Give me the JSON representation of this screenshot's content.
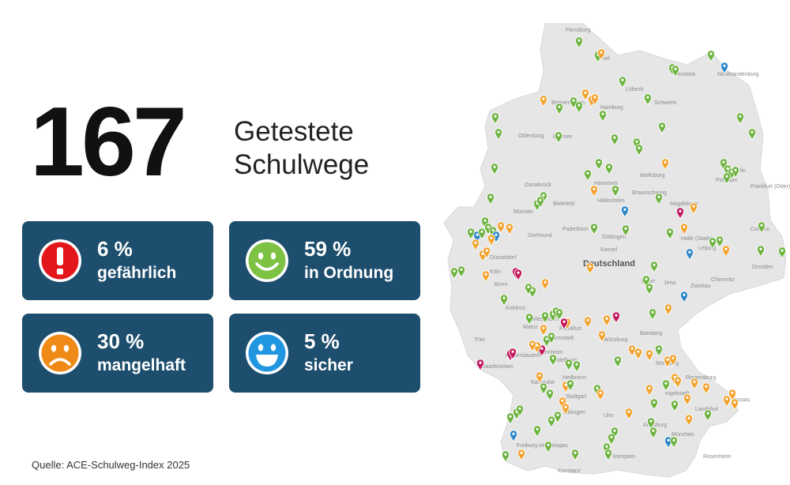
{
  "headline": {
    "number": "167",
    "line1": "Getestete",
    "line2": "Schulwege"
  },
  "categories": [
    {
      "percent": "6 %",
      "label": "gefährlich",
      "icon": "exclamation-icon",
      "color": "#e3161b"
    },
    {
      "percent": "59 %",
      "label": "in Ordnung",
      "icon": "happy-face-icon",
      "color": "#7dc242"
    },
    {
      "percent": "30 %",
      "label": "mangelhaft",
      "icon": "sad-face-icon",
      "color": "#f08a16"
    },
    {
      "percent": "5 %",
      "label": "sicher",
      "icon": "laughing-face-icon",
      "color": "#2196e0"
    }
  ],
  "map": {
    "country_label": "Deutschland",
    "city_labels": [
      "Flensburg",
      "Kiel",
      "Lübeck",
      "Rostock",
      "Hamburg",
      "Bremerhaven",
      "Bremen",
      "Oldenburg",
      "Schwerin",
      "Neubrandenburg",
      "Hannover",
      "Wolfsburg",
      "Braunschweig",
      "Magdeburg",
      "Potsdam",
      "Berlin",
      "Frankfurt (Oder)",
      "Osnabrück",
      "Bielefeld",
      "Münster",
      "Paderborn",
      "Hildesheim",
      "Göttingen",
      "Dortmund",
      "Düsseldorf",
      "Köln",
      "Bonn",
      "Kassel",
      "Halle (Saale)",
      "Leipzig",
      "Dresden",
      "Cottbus",
      "Erfurt",
      "Jena",
      "Zwickau",
      "Chemnitz",
      "Koblenz",
      "Wiesbaden",
      "Mainz",
      "Frankfurt",
      "Darmstadt",
      "Würzburg",
      "Bamberg",
      "Nürnberg",
      "Mannheim",
      "Heidelberg",
      "Heilbronn",
      "Karlsruhe",
      "Stuttgart",
      "Tübingen",
      "Ulm",
      "Augsburg",
      "Ingolstadt",
      "Regensburg",
      "Passau",
      "Landshut",
      "München",
      "Freiburg im Breisgau",
      "Konstanz",
      "Kempten",
      "Rosenheim",
      "Saarbrücken",
      "Trier",
      "Kaiserslautern"
    ],
    "marker_colors": {
      "gefaehrlich": "#c2185b",
      "in_ordnung": "#6db33f",
      "mangelhaft": "#f2a32e",
      "sicher": "#2a86c9"
    }
  },
  "source": "Quelle: ACE-Schulweg-Index 2025"
}
